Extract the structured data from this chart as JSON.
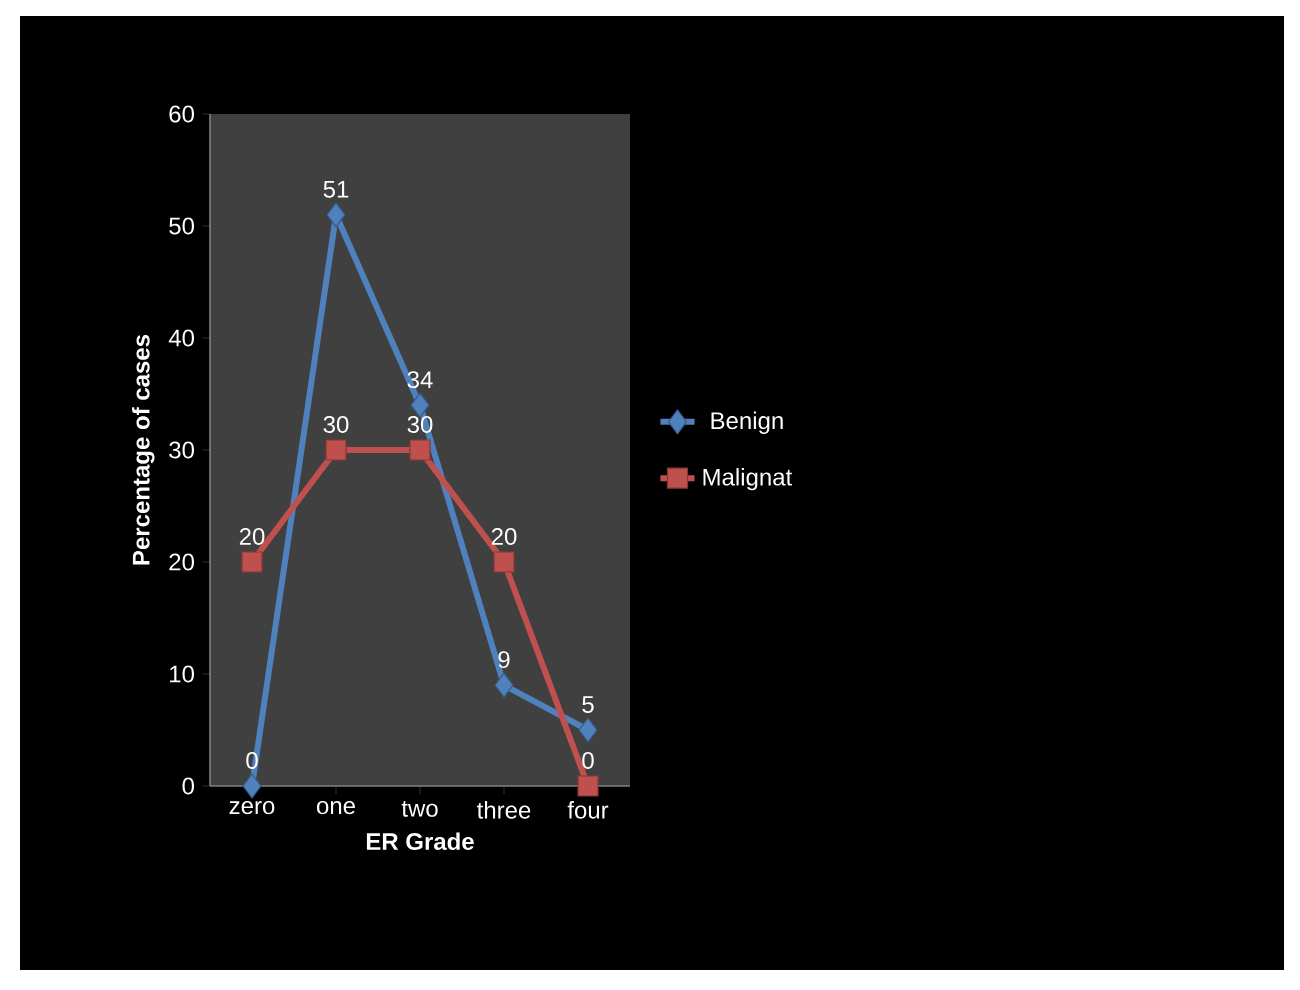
{
  "chart_data": {
    "type": "line",
    "xlabel": "ER  Grade",
    "ylabel": "Percentage of cases",
    "categories": [
      "zero",
      "one",
      "two",
      "three",
      "four"
    ],
    "series": [
      {
        "name": "Benign",
        "color": "#4f81bd",
        "marker": "diamond",
        "values": [
          0,
          51,
          34,
          9,
          5
        ]
      },
      {
        "name": "Malignat",
        "color": "#c0504d",
        "marker": "square",
        "values": [
          20,
          30,
          30,
          20,
          0
        ]
      }
    ],
    "ylim": [
      0,
      60
    ],
    "yticks": [
      0,
      10,
      20,
      30,
      40,
      50,
      60
    ],
    "data_labels": true,
    "legend": "right",
    "grid": false
  }
}
